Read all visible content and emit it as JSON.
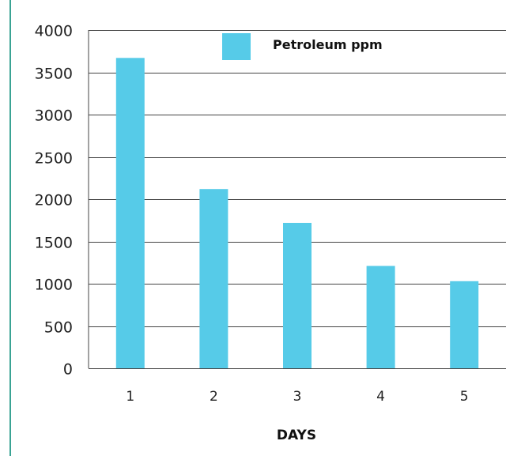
{
  "colors": {
    "bar": "#56CBE8",
    "rule": "#3aa394",
    "grid": "#444444"
  },
  "chart_data": {
    "type": "bar",
    "title": "",
    "xlabel": "DAYS",
    "ylabel": "",
    "categories": [
      "1",
      "2",
      "3",
      "4",
      "5"
    ],
    "series": [
      {
        "name": "Petroleum ppm",
        "values": [
          3670,
          2120,
          1720,
          1210,
          1030
        ]
      }
    ],
    "ylim": [
      0,
      4000
    ],
    "yticks": [
      0,
      500,
      1000,
      1500,
      2000,
      2500,
      3000,
      3500,
      4000
    ],
    "grid": true,
    "legend": "top-center"
  }
}
